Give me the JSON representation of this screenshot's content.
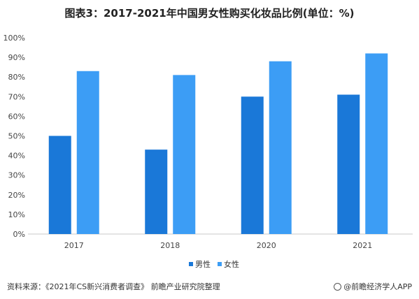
{
  "title": "图表3：2017-2021年中国男女性购买化妆品比例(单位：%)",
  "chart_data": {
    "type": "bar",
    "categories": [
      "2017",
      "2018",
      "2020",
      "2021"
    ],
    "series": [
      {
        "name": "男性",
        "values": [
          50,
          43,
          70,
          71
        ],
        "color": "#1a78d8"
      },
      {
        "name": "女性",
        "values": [
          83,
          81,
          88,
          92
        ],
        "color": "#3c9df5"
      }
    ],
    "ylim": [
      0,
      100
    ],
    "yticks": [
      "0%",
      "10%",
      "20%",
      "30%",
      "40%",
      "50%",
      "60%",
      "70%",
      "80%",
      "90%",
      "100%"
    ],
    "grid": false,
    "legend": "bottom-center"
  },
  "footer": {
    "source": "资料来源：《2021年CS新兴消费者调查》 前瞻产业研究院整理",
    "brand": "@前瞻经济学人APP"
  }
}
